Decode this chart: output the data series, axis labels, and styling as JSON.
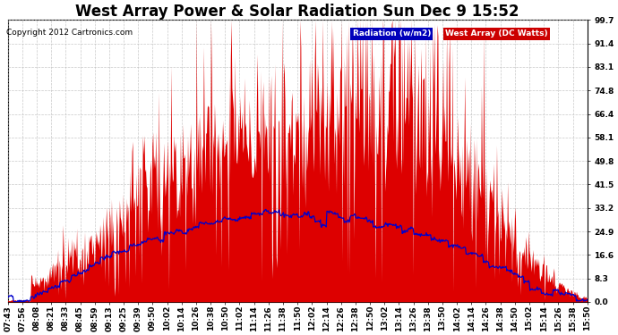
{
  "title": "West Array Power & Solar Radiation Sun Dec 9 15:52",
  "copyright": "Copyright 2012 Cartronics.com",
  "legend_radiation": "Radiation (w/m2)",
  "legend_west": "West Array (DC Watts)",
  "legend_radiation_bg": "#0000bb",
  "legend_west_bg": "#cc0000",
  "y_ticks": [
    0.0,
    8.3,
    16.6,
    24.9,
    33.2,
    41.5,
    49.8,
    58.1,
    66.4,
    74.8,
    83.1,
    91.4,
    99.7
  ],
  "y_max": 99.7,
  "y_min": 0.0,
  "background_color": "#ffffff",
  "grid_color": "#aaaaaa",
  "x_labels": [
    "07:43",
    "07:56",
    "08:08",
    "08:21",
    "08:33",
    "08:45",
    "08:59",
    "09:13",
    "09:25",
    "09:39",
    "09:50",
    "10:02",
    "10:14",
    "10:26",
    "10:38",
    "10:50",
    "11:02",
    "11:14",
    "11:26",
    "11:38",
    "11:50",
    "12:02",
    "12:14",
    "12:26",
    "12:38",
    "12:50",
    "13:02",
    "13:14",
    "13:26",
    "13:38",
    "13:50",
    "14:02",
    "14:14",
    "14:26",
    "14:38",
    "14:50",
    "15:02",
    "15:14",
    "15:26",
    "15:38",
    "15:50"
  ],
  "title_fontsize": 12,
  "axis_fontsize": 6.5,
  "copyright_fontsize": 6.5,
  "n_points": 800
}
